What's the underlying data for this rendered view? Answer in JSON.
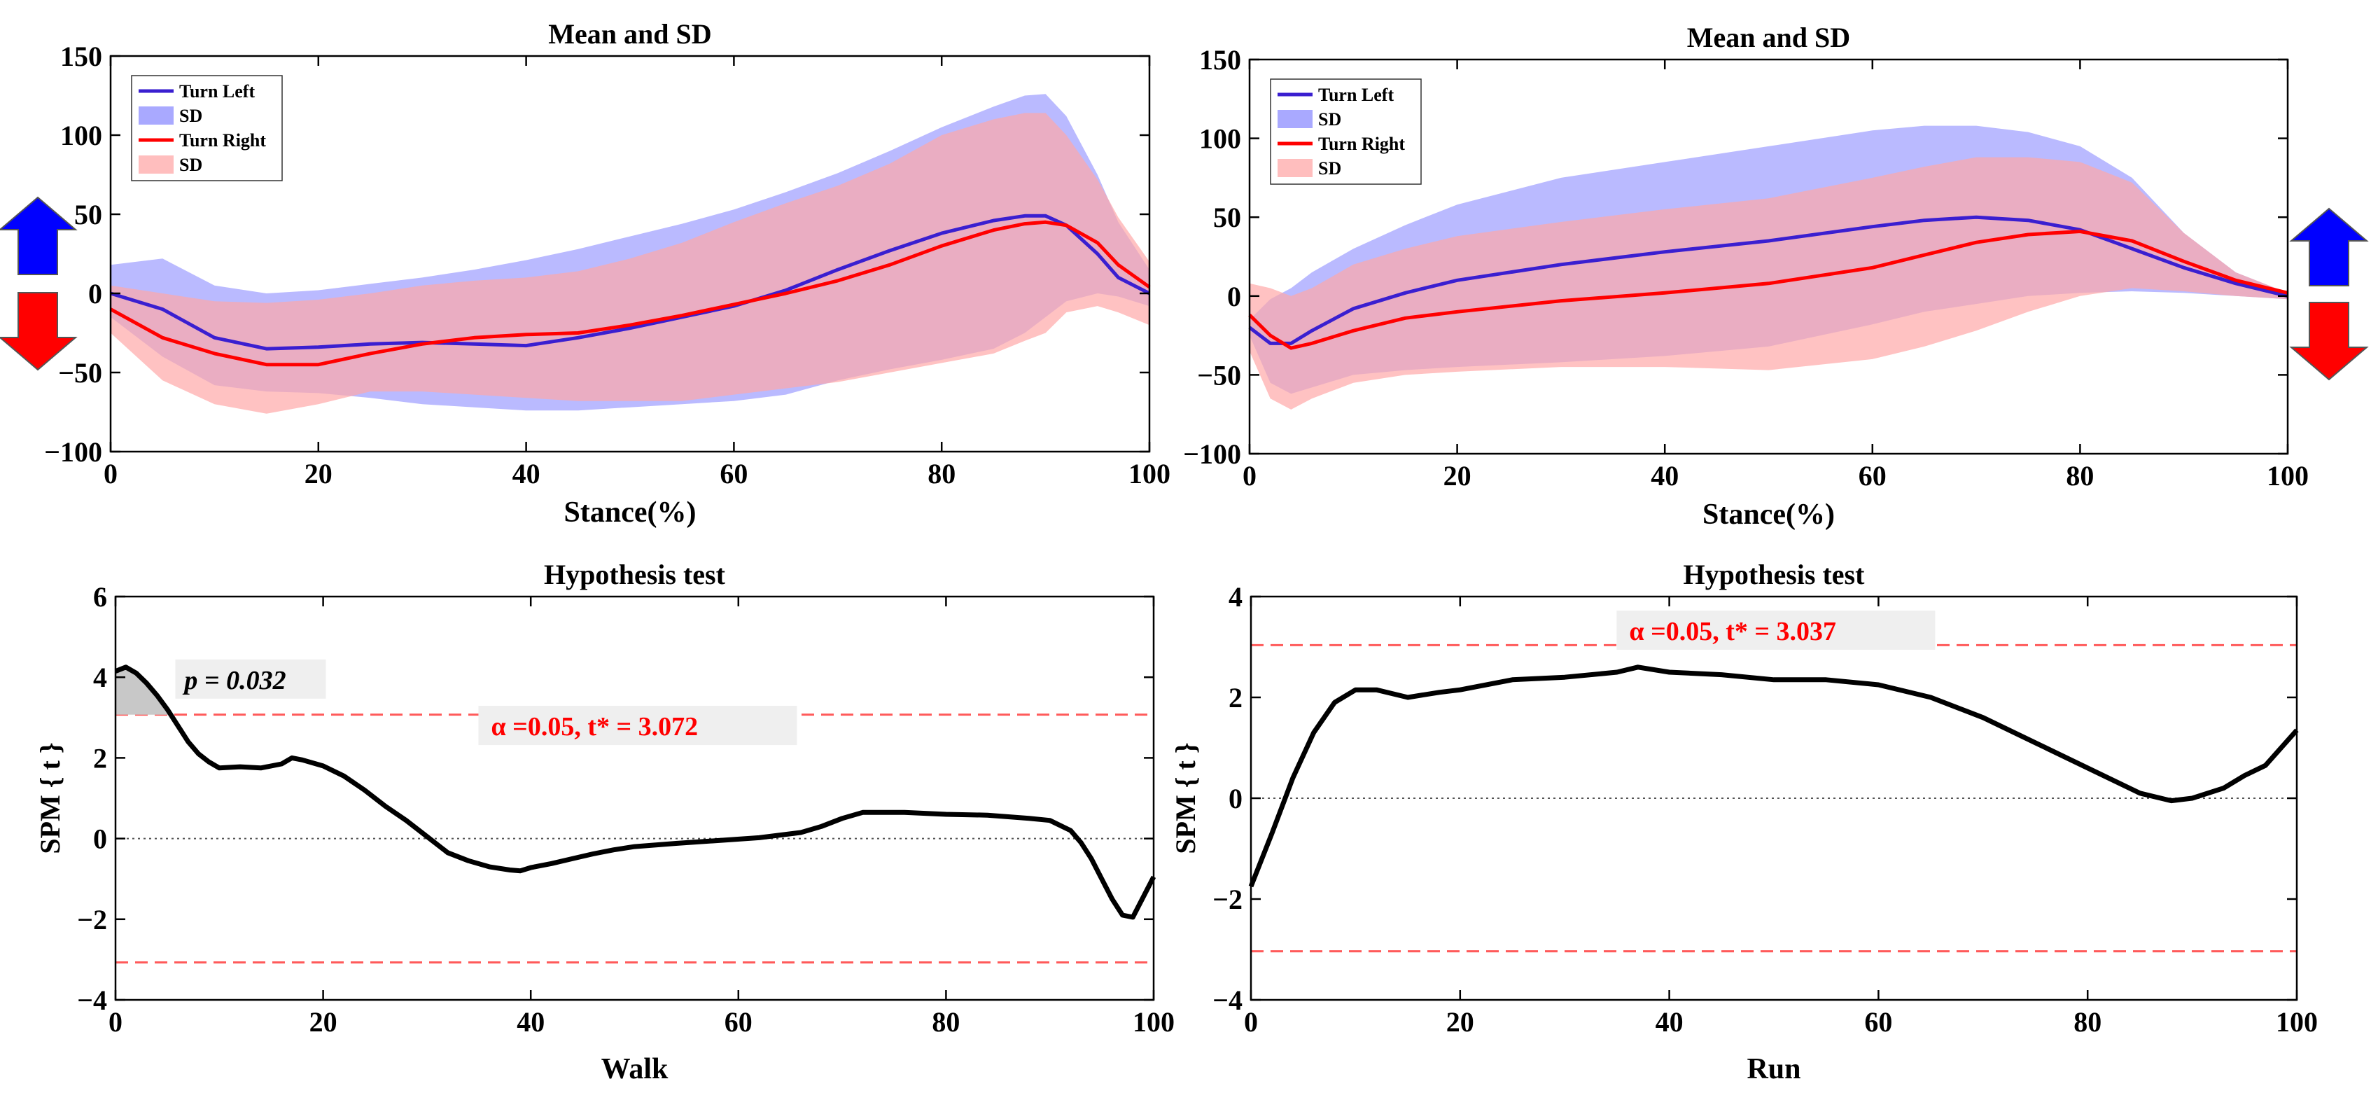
{
  "figure": {
    "arrow_colors": {
      "up": "#0000ff",
      "down": "#ff0000"
    }
  },
  "chart_data": [
    {
      "type": "line",
      "panel": "walk-mean",
      "title": "Mean and SD",
      "xlabel": "Stance(%)",
      "ylabel": "",
      "xlim": [
        0,
        100
      ],
      "ylim": [
        -100,
        150
      ],
      "xticks": [
        0,
        20,
        40,
        60,
        80,
        100
      ],
      "yticks": [
        -100,
        -50,
        0,
        50,
        100,
        150
      ],
      "legend": {
        "position": "top-left",
        "entries": [
          "Turn Left",
          "SD",
          "Turn Right",
          "SD"
        ]
      },
      "x": [
        0,
        5,
        10,
        15,
        20,
        25,
        30,
        35,
        40,
        45,
        50,
        55,
        60,
        65,
        70,
        75,
        80,
        85,
        88,
        90,
        92,
        95,
        97,
        100
      ],
      "series": [
        {
          "name": "Turn Left",
          "color": "#3a1fd0",
          "sd_color": "#8c8cff",
          "mean": [
            0,
            -10,
            -28,
            -35,
            -34,
            -32,
            -31,
            -32,
            -33,
            -28,
            -22,
            -15,
            -8,
            2,
            15,
            27,
            38,
            46,
            49,
            49,
            43,
            25,
            10,
            0
          ],
          "upper": [
            18,
            22,
            5,
            0,
            2,
            6,
            10,
            15,
            21,
            28,
            36,
            44,
            53,
            64,
            76,
            90,
            105,
            118,
            125,
            126,
            112,
            75,
            45,
            15
          ],
          "lower": [
            -15,
            -40,
            -58,
            -62,
            -63,
            -66,
            -70,
            -72,
            -74,
            -74,
            -72,
            -70,
            -68,
            -64,
            -55,
            -48,
            -42,
            -35,
            -25,
            -15,
            -5,
            0,
            -2,
            -8
          ]
        },
        {
          "name": "Turn Right",
          "color": "#ff0000",
          "sd_color": "#ffa8a8",
          "mean": [
            -10,
            -28,
            -38,
            -45,
            -45,
            -38,
            -32,
            -28,
            -26,
            -25,
            -20,
            -14,
            -7,
            0,
            8,
            18,
            30,
            40,
            44,
            45,
            43,
            32,
            18,
            4
          ],
          "upper": [
            5,
            0,
            -5,
            -6,
            -4,
            0,
            5,
            8,
            10,
            14,
            22,
            32,
            45,
            57,
            68,
            82,
            100,
            110,
            114,
            114,
            100,
            72,
            48,
            20
          ],
          "lower": [
            -25,
            -55,
            -70,
            -76,
            -70,
            -62,
            -62,
            -64,
            -66,
            -68,
            -68,
            -68,
            -64,
            -60,
            -56,
            -50,
            -44,
            -38,
            -30,
            -25,
            -12,
            -8,
            -12,
            -20
          ]
        }
      ]
    },
    {
      "type": "line",
      "panel": "run-mean",
      "title": "Mean and SD",
      "xlabel": "Stance(%)",
      "ylabel": "",
      "xlim": [
        0,
        100
      ],
      "ylim": [
        -100,
        150
      ],
      "xticks": [
        0,
        20,
        40,
        60,
        80,
        100
      ],
      "yticks": [
        -100,
        -50,
        0,
        50,
        100,
        150
      ],
      "legend": {
        "position": "top-left",
        "entries": [
          "Turn Left",
          "SD",
          "Turn Right",
          "SD"
        ]
      },
      "x": [
        0,
        2,
        4,
        6,
        10,
        15,
        20,
        30,
        40,
        50,
        60,
        65,
        70,
        75,
        80,
        85,
        90,
        95,
        100
      ],
      "series": [
        {
          "name": "Turn Left",
          "color": "#3a1fd0",
          "sd_color": "#8c8cff",
          "mean": [
            -20,
            -30,
            -30,
            -22,
            -8,
            2,
            10,
            20,
            28,
            35,
            44,
            48,
            50,
            48,
            42,
            30,
            18,
            8,
            0
          ],
          "upper": [
            -15,
            -2,
            5,
            15,
            30,
            45,
            58,
            75,
            85,
            95,
            105,
            108,
            108,
            104,
            95,
            75,
            40,
            15,
            2
          ],
          "lower": [
            -25,
            -55,
            -62,
            -58,
            -50,
            -47,
            -45,
            -42,
            -38,
            -32,
            -18,
            -10,
            -5,
            0,
            2,
            3,
            2,
            0,
            -2
          ]
        },
        {
          "name": "Turn Right",
          "color": "#ff0000",
          "sd_color": "#ffa8a8",
          "mean": [
            -12,
            -25,
            -33,
            -30,
            -22,
            -14,
            -10,
            -3,
            2,
            8,
            18,
            26,
            34,
            39,
            41,
            35,
            22,
            10,
            2
          ],
          "upper": [
            8,
            5,
            0,
            5,
            20,
            30,
            38,
            47,
            55,
            62,
            75,
            82,
            88,
            88,
            85,
            72,
            40,
            15,
            2
          ],
          "lower": [
            -35,
            -65,
            -72,
            -65,
            -55,
            -50,
            -48,
            -45,
            -45,
            -47,
            -40,
            -32,
            -22,
            -10,
            0,
            5,
            3,
            0,
            -2
          ]
        }
      ]
    },
    {
      "type": "line",
      "panel": "walk-spm",
      "title": "Hypothesis test",
      "xlabel": "Walk",
      "ylabel": "SPM { t }",
      "xlim": [
        0,
        100
      ],
      "ylim": [
        -4,
        6
      ],
      "xticks": [
        0,
        20,
        40,
        60,
        80,
        100
      ],
      "yticks": [
        -4,
        -2,
        0,
        2,
        4,
        6
      ],
      "threshold": 3.072,
      "alpha_label": "α  =0.05,     t* = 3.072",
      "p_label": "p = 0.032",
      "x": [
        0,
        1,
        2,
        3,
        4,
        5,
        6,
        7,
        8,
        9,
        10,
        12,
        14,
        16,
        17,
        18,
        20,
        22,
        24,
        26,
        28,
        30,
        32,
        34,
        36,
        38,
        39,
        40,
        42,
        44,
        46,
        48,
        50,
        54,
        58,
        62,
        66,
        68,
        70,
        72,
        74,
        76,
        80,
        84,
        88,
        90,
        92,
        93,
        94,
        95,
        96,
        97,
        98,
        100
      ],
      "series": [
        {
          "name": "SPM{t}",
          "color": "#000000",
          "values": [
            4.15,
            4.25,
            4.1,
            3.85,
            3.55,
            3.2,
            2.8,
            2.4,
            2.1,
            1.9,
            1.75,
            1.78,
            1.75,
            1.85,
            2.0,
            1.95,
            1.8,
            1.55,
            1.2,
            0.8,
            0.45,
            0.05,
            -0.35,
            -0.55,
            -0.7,
            -0.78,
            -0.8,
            -0.72,
            -0.62,
            -0.5,
            -0.38,
            -0.28,
            -0.2,
            -0.12,
            -0.05,
            0.02,
            0.15,
            0.3,
            0.5,
            0.65,
            0.65,
            0.65,
            0.6,
            0.58,
            0.5,
            0.45,
            0.2,
            -0.1,
            -0.5,
            -1.0,
            -1.5,
            -1.9,
            -1.95,
            -0.95
          ]
        }
      ]
    },
    {
      "type": "line",
      "panel": "run-spm",
      "title": "Hypothesis test",
      "xlabel": "Run",
      "ylabel": "SPM { t }",
      "xlim": [
        0,
        100
      ],
      "ylim": [
        -4,
        4
      ],
      "xticks": [
        0,
        20,
        40,
        60,
        80,
        100
      ],
      "yticks": [
        -4,
        -2,
        0,
        2,
        4
      ],
      "threshold": 3.037,
      "alpha_label": "α  =0.05,     t* = 3.037",
      "x": [
        0,
        2,
        4,
        6,
        8,
        10,
        12,
        15,
        18,
        20,
        25,
        30,
        35,
        37,
        40,
        45,
        50,
        55,
        60,
        65,
        70,
        75,
        80,
        85,
        88,
        90,
        93,
        95,
        97,
        100
      ],
      "series": [
        {
          "name": "SPM{t}",
          "color": "#000000",
          "values": [
            -1.75,
            -0.7,
            0.4,
            1.3,
            1.9,
            2.15,
            2.15,
            2.0,
            2.1,
            2.15,
            2.35,
            2.4,
            2.5,
            2.6,
            2.5,
            2.45,
            2.35,
            2.35,
            2.25,
            2.0,
            1.6,
            1.1,
            0.6,
            0.1,
            -0.05,
            0.0,
            0.2,
            0.45,
            0.65,
            1.35
          ]
        }
      ]
    }
  ]
}
